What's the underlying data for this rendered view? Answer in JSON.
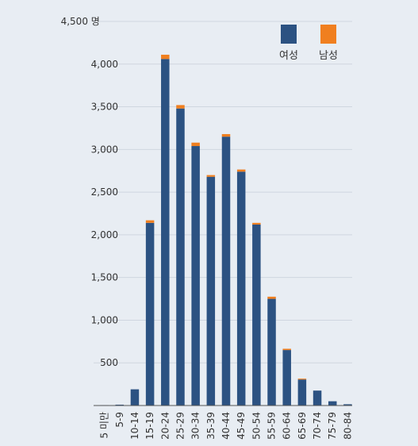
{
  "chart_data": {
    "type": "bar",
    "stacked": true,
    "categories": [
      "5 미만",
      "5-9",
      "10-14",
      "15-19",
      "20-24",
      "25-29",
      "30-34",
      "35-39",
      "40-44",
      "45-49",
      "50-54",
      "55-59",
      "60-64",
      "65-69",
      "70-74",
      "75-79",
      "80-84"
    ],
    "series": [
      {
        "name": "여성",
        "color": "#2c5282",
        "values": [
          5,
          10,
          190,
          2140,
          4060,
          3480,
          3040,
          2680,
          3150,
          2740,
          2120,
          1250,
          650,
          305,
          175,
          50,
          15
        ]
      },
      {
        "name": "남성",
        "color": "#f07f1f",
        "values": [
          0,
          0,
          0,
          30,
          50,
          40,
          40,
          20,
          30,
          25,
          20,
          25,
          15,
          10,
          0,
          0,
          0
        ]
      }
    ],
    "y_ticks": [
      "500",
      "1,000",
      "1,500",
      "2,000",
      "2,500",
      "3,000",
      "3,500",
      "4,000",
      "4,500 명"
    ],
    "ylim": [
      0,
      4500
    ],
    "grid": true,
    "legend_position": "top-right"
  }
}
